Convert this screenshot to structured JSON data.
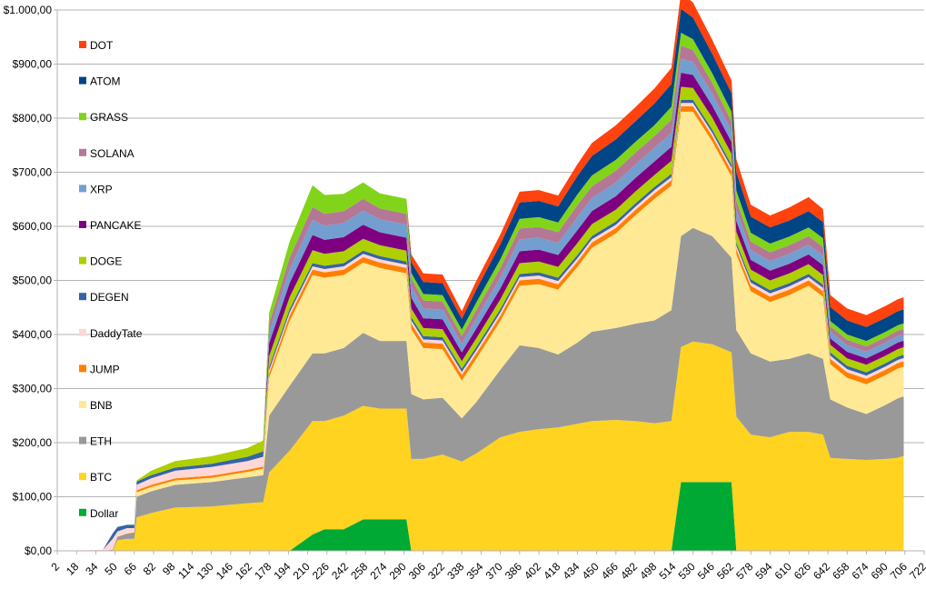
{
  "chart_data": {
    "type": "area",
    "stacked": true,
    "title": "",
    "xlabel": "",
    "ylabel": "",
    "ylim": [
      0,
      1000
    ],
    "xlim": [
      2,
      722
    ],
    "grid": true,
    "legend_position": "left",
    "y_ticks": [
      "$0,00",
      "$100,00",
      "$200,00",
      "$300,00",
      "$400,00",
      "$500,00",
      "$600,00",
      "$700,00",
      "$800,00",
      "$900,00",
      "$1.000,00"
    ],
    "y_tick_values": [
      0,
      100,
      200,
      300,
      400,
      500,
      600,
      700,
      800,
      900,
      1000
    ],
    "x_ticks": [
      "2",
      "18",
      "34",
      "50",
      "66",
      "82",
      "98",
      "114",
      "130",
      "146",
      "162",
      "178",
      "194",
      "210",
      "226",
      "242",
      "258",
      "274",
      "290",
      "306",
      "322",
      "338",
      "354",
      "370",
      "386",
      "402",
      "418",
      "434",
      "450",
      "466",
      "482",
      "498",
      "514",
      "530",
      "546",
      "562",
      "578",
      "594",
      "610",
      "626",
      "642",
      "658",
      "674",
      "690",
      "706",
      "722"
    ],
    "x_tick_values": [
      2,
      18,
      34,
      50,
      66,
      82,
      98,
      114,
      130,
      146,
      162,
      178,
      194,
      210,
      226,
      242,
      258,
      274,
      290,
      306,
      322,
      338,
      354,
      370,
      386,
      402,
      418,
      434,
      450,
      466,
      482,
      498,
      514,
      530,
      546,
      562,
      578,
      594,
      610,
      626,
      642,
      658,
      674,
      690,
      706,
      722
    ],
    "x": [
      2,
      40,
      48,
      52,
      60,
      66,
      68,
      80,
      100,
      130,
      160,
      173,
      178,
      195,
      214,
      224,
      240,
      256,
      270,
      292,
      296,
      306,
      322,
      338,
      350,
      370,
      386,
      402,
      418,
      434,
      446,
      466,
      482,
      498,
      512,
      520,
      530,
      546,
      562,
      566,
      578,
      594,
      610,
      626,
      638,
      644,
      658,
      674,
      690,
      700,
      704,
      705
    ],
    "series": [
      {
        "name": "Dollar",
        "color": "#00a933",
        "values": [
          0,
          0,
          0,
          0,
          0,
          0,
          0,
          0,
          0,
          0,
          0,
          0,
          0,
          0,
          30,
          40,
          40,
          58,
          58,
          58,
          0,
          0,
          0,
          0,
          0,
          0,
          0,
          0,
          0,
          0,
          0,
          0,
          0,
          0,
          0,
          127,
          127,
          127,
          127,
          0,
          0,
          0,
          0,
          0,
          0,
          0,
          0,
          0,
          0,
          0,
          0,
          0
        ]
      },
      {
        "name": "BTC",
        "color": "#ffd320",
        "values": [
          0,
          0,
          0,
          20,
          22,
          22,
          62,
          70,
          80,
          82,
          88,
          90,
          145,
          185,
          210,
          200,
          210,
          210,
          205,
          205,
          170,
          170,
          178,
          165,
          180,
          210,
          220,
          225,
          228,
          235,
          240,
          242,
          240,
          236,
          240,
          250,
          260,
          255,
          240,
          248,
          215,
          210,
          220,
          220,
          215,
          172,
          170,
          168,
          170,
          172,
          175,
          175
        ]
      },
      {
        "name": "ETH",
        "color": "#999999",
        "values": [
          0,
          0,
          2,
          6,
          10,
          12,
          38,
          40,
          42,
          45,
          48,
          50,
          105,
          120,
          125,
          125,
          125,
          135,
          125,
          125,
          120,
          110,
          105,
          80,
          95,
          125,
          160,
          150,
          135,
          150,
          165,
          170,
          180,
          190,
          205,
          205,
          210,
          200,
          175,
          160,
          150,
          140,
          135,
          145,
          140,
          108,
          95,
          85,
          100,
          110,
          110,
          110
        ]
      },
      {
        "name": "BNB",
        "color": "#ffe994",
        "values": [
          0,
          0,
          0,
          0,
          2,
          2,
          8,
          8,
          8,
          8,
          10,
          12,
          70,
          120,
          145,
          140,
          135,
          130,
          135,
          125,
          120,
          95,
          90,
          70,
          80,
          90,
          110,
          118,
          120,
          140,
          155,
          175,
          200,
          225,
          230,
          230,
          215,
          175,
          150,
          140,
          115,
          110,
          118,
          125,
          115,
          65,
          55,
          55,
          55,
          55,
          55,
          55
        ]
      },
      {
        "name": "JUMP",
        "color": "#ff8000",
        "values": [
          0,
          0,
          0,
          0,
          0,
          0,
          4,
          4,
          4,
          4,
          4,
          4,
          8,
          10,
          10,
          10,
          10,
          10,
          10,
          10,
          10,
          10,
          10,
          10,
          10,
          10,
          10,
          10,
          10,
          10,
          10,
          10,
          10,
          10,
          10,
          10,
          10,
          10,
          10,
          10,
          10,
          10,
          10,
          10,
          10,
          10,
          10,
          10,
          10,
          10,
          10,
          10
        ]
      },
      {
        "name": "DaddyTate",
        "color": "#ffd7d7",
        "values": [
          0,
          2,
          20,
          10,
          8,
          6,
          10,
          12,
          14,
          16,
          16,
          18,
          6,
          6,
          6,
          6,
          6,
          6,
          6,
          6,
          6,
          6,
          6,
          6,
          6,
          6,
          6,
          6,
          6,
          6,
          6,
          6,
          6,
          6,
          6,
          6,
          6,
          6,
          6,
          6,
          6,
          6,
          6,
          6,
          6,
          6,
          6,
          6,
          6,
          6,
          6,
          6
        ]
      },
      {
        "name": "DEGEN",
        "color": "#3465a4",
        "values": [
          0,
          0,
          10,
          8,
          6,
          6,
          6,
          6,
          6,
          6,
          8,
          10,
          6,
          6,
          6,
          6,
          6,
          6,
          6,
          6,
          6,
          6,
          6,
          6,
          6,
          6,
          6,
          6,
          6,
          6,
          6,
          6,
          6,
          6,
          6,
          6,
          6,
          6,
          6,
          6,
          6,
          6,
          6,
          6,
          6,
          6,
          6,
          6,
          6,
          6,
          6,
          6
        ]
      },
      {
        "name": "DOGE",
        "color": "#aecf00",
        "values": [
          0,
          0,
          0,
          0,
          0,
          0,
          2,
          8,
          12,
          14,
          16,
          20,
          20,
          22,
          24,
          22,
          22,
          22,
          20,
          20,
          16,
          15,
          15,
          14,
          16,
          18,
          20,
          20,
          20,
          22,
          22,
          22,
          22,
          22,
          24,
          24,
          22,
          22,
          20,
          20,
          18,
          18,
          18,
          18,
          18,
          14,
          14,
          14,
          14,
          14,
          14,
          14
        ]
      },
      {
        "name": "PANCAKE",
        "color": "#7e0080",
        "values": [
          0,
          0,
          0,
          0,
          0,
          0,
          0,
          0,
          0,
          0,
          0,
          0,
          24,
          26,
          28,
          26,
          26,
          26,
          24,
          24,
          20,
          18,
          18,
          16,
          18,
          20,
          22,
          22,
          22,
          24,
          24,
          25,
          25,
          25,
          26,
          26,
          24,
          22,
          22,
          20,
          18,
          18,
          18,
          18,
          18,
          12,
          12,
          12,
          12,
          12,
          12,
          12
        ]
      },
      {
        "name": "XRP",
        "color": "#729fcf",
        "values": [
          0,
          0,
          0,
          0,
          0,
          0,
          0,
          0,
          0,
          0,
          0,
          0,
          20,
          25,
          28,
          26,
          26,
          26,
          24,
          24,
          20,
          18,
          18,
          16,
          18,
          20,
          22,
          22,
          22,
          24,
          24,
          25,
          25,
          25,
          26,
          26,
          24,
          22,
          20,
          20,
          18,
          18,
          18,
          18,
          18,
          12,
          12,
          12,
          12,
          12,
          12,
          12
        ]
      },
      {
        "name": "SOLANA",
        "color": "#b47896",
        "values": [
          0,
          0,
          0,
          0,
          0,
          0,
          0,
          0,
          0,
          0,
          0,
          0,
          16,
          22,
          24,
          22,
          22,
          22,
          20,
          20,
          16,
          15,
          15,
          14,
          16,
          18,
          20,
          20,
          20,
          22,
          22,
          22,
          22,
          22,
          24,
          24,
          22,
          20,
          18,
          18,
          16,
          16,
          16,
          16,
          16,
          10,
          10,
          10,
          10,
          10,
          10,
          10
        ]
      },
      {
        "name": "GRASS",
        "color": "#81d41a",
        "values": [
          0,
          0,
          0,
          0,
          0,
          0,
          0,
          0,
          0,
          0,
          0,
          0,
          20,
          30,
          40,
          35,
          32,
          30,
          28,
          28,
          10,
          12,
          12,
          12,
          14,
          16,
          18,
          18,
          18,
          20,
          20,
          20,
          20,
          20,
          24,
          24,
          20,
          18,
          18,
          18,
          16,
          16,
          16,
          16,
          16,
          10,
          10,
          10,
          10,
          10,
          10,
          10
        ]
      },
      {
        "name": "ATOM",
        "color": "#004586",
        "values": [
          0,
          0,
          0,
          0,
          0,
          0,
          0,
          0,
          0,
          0,
          0,
          0,
          0,
          0,
          0,
          0,
          0,
          0,
          0,
          0,
          20,
          22,
          22,
          20,
          24,
          28,
          30,
          30,
          30,
          34,
          36,
          38,
          38,
          40,
          42,
          44,
          40,
          36,
          34,
          34,
          30,
          30,
          30,
          30,
          30,
          26,
          26,
          26,
          26,
          26,
          26,
          26
        ]
      },
      {
        "name": "DOT",
        "color": "#ff420e",
        "values": [
          0,
          0,
          0,
          0,
          0,
          0,
          0,
          0,
          0,
          0,
          0,
          0,
          0,
          0,
          0,
          0,
          0,
          0,
          0,
          0,
          14,
          16,
          16,
          14,
          16,
          18,
          20,
          20,
          20,
          22,
          24,
          26,
          26,
          28,
          30,
          30,
          28,
          26,
          24,
          24,
          22,
          22,
          24,
          26,
          24,
          22,
          22,
          22,
          22,
          22,
          22,
          22
        ]
      }
    ]
  }
}
